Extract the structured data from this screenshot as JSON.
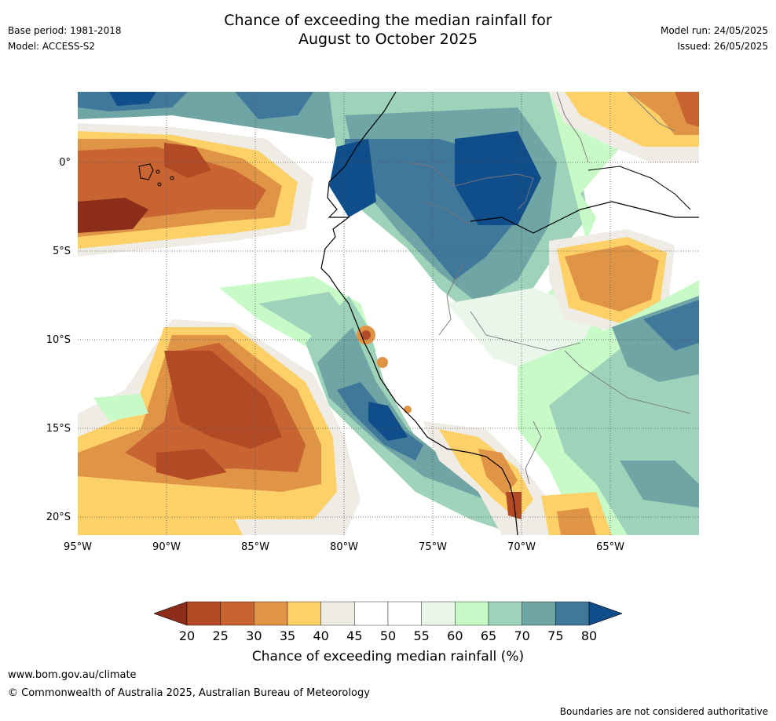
{
  "title": {
    "line1": "Chance of exceeding the median rainfall for",
    "line2": "August to October 2025"
  },
  "meta_left": {
    "base_period": "Base period: 1981-2018",
    "model": "Model: ACCESS-S2"
  },
  "meta_right": {
    "model_run": "Model run: 24/05/2025",
    "issued": "Issued: 26/05/2025"
  },
  "map": {
    "lat_labels": [
      {
        "lat": 0,
        "text": "0°"
      },
      {
        "lat": -5,
        "text": "5°S"
      },
      {
        "lat": -10,
        "text": "10°S"
      },
      {
        "lat": -15,
        "text": "15°S"
      },
      {
        "lat": -20,
        "text": "20°S"
      }
    ],
    "lon_labels": [
      {
        "lon": -95,
        "text": "95°W"
      },
      {
        "lon": -90,
        "text": "90°W"
      },
      {
        "lon": -85,
        "text": "85°W"
      },
      {
        "lon": -80,
        "text": "80°W"
      },
      {
        "lon": -75,
        "text": "75°W"
      },
      {
        "lon": -70,
        "text": "70°W"
      },
      {
        "lon": -65,
        "text": "65°W"
      }
    ],
    "lon_range": [
      -95,
      -60
    ],
    "lat_range": [
      -21,
      4
    ]
  },
  "colorbar": {
    "labels": [
      "20",
      "25",
      "30",
      "35",
      "40",
      "45",
      "50",
      "55",
      "60",
      "65",
      "70",
      "75",
      "80"
    ],
    "colors": [
      "#8c2d1b",
      "#b24a26",
      "#c86432",
      "#e09446",
      "#fdd068",
      "#efece6",
      "#ffffff",
      "#ffffff",
      "#ebf6eb",
      "#c8fac8",
      "#9ed2bb",
      "#6fa5a5",
      "#40789b",
      "#104e8b"
    ],
    "title": "Chance of exceeding median rainfall (%)"
  },
  "footer": {
    "website": "www.bom.gov.au/climate",
    "copyright": "© Commonwealth of Australia 2025, Australian Bureau of Meteorology",
    "disclaimer": "Boundaries are not considered authoritative"
  }
}
